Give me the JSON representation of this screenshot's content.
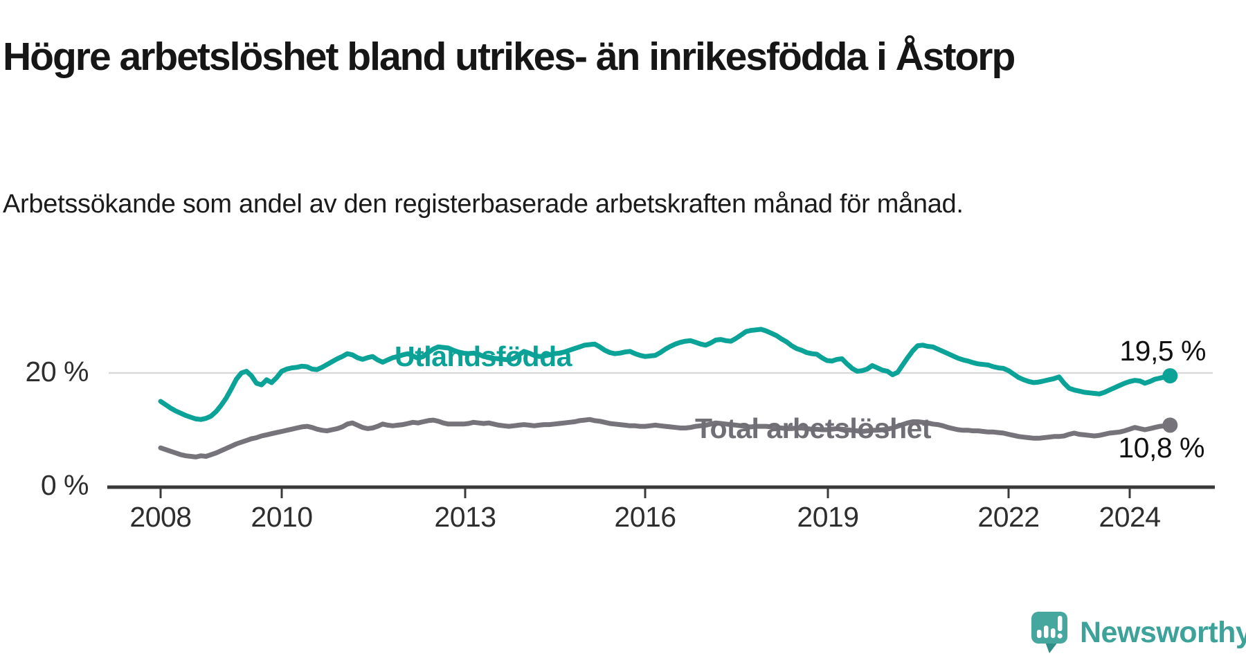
{
  "header": {
    "title": "Högre arbetslöshet bland utrikes- än inrikesfödda i Åstorp",
    "subtitle": "Arbetssökande som andel av den registerbaserade arbetskraften månad för månad."
  },
  "chart_data": {
    "type": "line",
    "title": "Högre arbetslöshet bland utrikes- än inrikesfödda i Åstorp",
    "xlabel": "",
    "ylabel": "Arbetssökande som andel av den registerbaserade arbetskraften",
    "x_start_year": 2008.0,
    "x_step_years": 0.0833333,
    "x_end_label_period": "sep 2024",
    "x_tick_labels": [
      "2008",
      "2010",
      "2013",
      "2016",
      "2019",
      "2022",
      "2024"
    ],
    "y_ticks": [
      {
        "value": 0,
        "label": "0 %"
      },
      {
        "value": 20,
        "label": "20 %"
      }
    ],
    "ylim": [
      0,
      33
    ],
    "grid": "single horizontal gridline at 20 %",
    "legend_position": "inline labels on lines",
    "series": [
      {
        "name": "Utlandsfödda",
        "color": "#0ba398",
        "end_label": "19,5 %",
        "end_value": 19.5,
        "values": [
          15.0,
          14.4,
          13.8,
          13.3,
          12.9,
          12.5,
          12.2,
          11.9,
          11.8,
          12.0,
          12.4,
          13.2,
          14.3,
          15.6,
          17.2,
          18.9,
          20.0,
          20.3,
          19.5,
          18.2,
          17.9,
          18.8,
          18.3,
          19.2,
          20.3,
          20.7,
          20.9,
          21.0,
          21.2,
          21.1,
          20.7,
          20.6,
          21.0,
          21.5,
          22.0,
          22.5,
          22.9,
          23.4,
          23.2,
          22.7,
          22.4,
          22.7,
          22.9,
          22.3,
          21.9,
          22.3,
          22.7,
          22.9,
          23.2,
          23.4,
          23.0,
          22.6,
          22.9,
          23.6,
          24.2,
          24.6,
          24.5,
          24.4,
          24.0,
          23.7,
          23.5,
          23.4,
          23.5,
          23.3,
          22.9,
          22.8,
          22.6,
          22.5,
          22.4,
          22.3,
          22.6,
          23.2,
          23.8,
          23.5,
          23.1,
          22.9,
          23.0,
          23.2,
          23.4,
          23.5,
          23.7,
          24.0,
          24.3,
          24.6,
          24.9,
          25.0,
          25.1,
          24.6,
          24.0,
          23.6,
          23.4,
          23.5,
          23.7,
          23.8,
          23.4,
          23.1,
          22.9,
          23.0,
          23.1,
          23.6,
          24.2,
          24.7,
          25.1,
          25.4,
          25.6,
          25.7,
          25.4,
          25.1,
          24.9,
          25.3,
          25.8,
          25.9,
          25.7,
          25.6,
          26.1,
          26.7,
          27.3,
          27.5,
          27.6,
          27.7,
          27.4,
          27.0,
          26.6,
          26.0,
          25.5,
          24.8,
          24.3,
          24.0,
          23.6,
          23.4,
          23.3,
          22.7,
          22.2,
          22.1,
          22.4,
          22.5,
          21.6,
          20.8,
          20.3,
          20.4,
          20.7,
          21.3,
          20.9,
          20.5,
          20.3,
          19.7,
          20.1,
          21.4,
          22.7,
          23.9,
          24.8,
          24.9,
          24.7,
          24.6,
          24.2,
          23.8,
          23.4,
          23.0,
          22.6,
          22.3,
          22.1,
          21.8,
          21.6,
          21.5,
          21.4,
          21.1,
          20.9,
          20.8,
          20.4,
          19.8,
          19.2,
          18.8,
          18.5,
          18.3,
          18.4,
          18.6,
          18.8,
          19.0,
          19.3,
          18.2,
          17.3,
          17.0,
          16.8,
          16.6,
          16.5,
          16.4,
          16.3,
          16.6,
          17.0,
          17.4,
          17.8,
          18.2,
          18.5,
          18.7,
          18.6,
          18.2,
          18.5,
          18.9,
          19.1,
          19.3,
          19.5
        ]
      },
      {
        "name": "Total arbetslöshet",
        "color": "#76747a",
        "end_label": "10,8 %",
        "end_value": 10.8,
        "values": [
          6.8,
          6.5,
          6.2,
          5.9,
          5.6,
          5.4,
          5.3,
          5.2,
          5.4,
          5.3,
          5.6,
          5.9,
          6.3,
          6.7,
          7.1,
          7.5,
          7.8,
          8.1,
          8.4,
          8.6,
          8.9,
          9.1,
          9.3,
          9.5,
          9.7,
          9.9,
          10.1,
          10.3,
          10.5,
          10.6,
          10.4,
          10.1,
          9.9,
          9.8,
          10.0,
          10.2,
          10.5,
          11.0,
          11.2,
          10.8,
          10.4,
          10.2,
          10.3,
          10.6,
          11.0,
          10.8,
          10.7,
          10.8,
          10.9,
          11.1,
          11.3,
          11.2,
          11.4,
          11.6,
          11.7,
          11.5,
          11.2,
          11.0,
          11.0,
          11.0,
          11.0,
          11.1,
          11.3,
          11.2,
          11.1,
          11.2,
          11.0,
          10.8,
          10.7,
          10.6,
          10.7,
          10.8,
          10.9,
          10.8,
          10.7,
          10.8,
          10.9,
          10.9,
          11.0,
          11.1,
          11.2,
          11.3,
          11.4,
          11.6,
          11.7,
          11.8,
          11.6,
          11.5,
          11.3,
          11.1,
          11.0,
          10.9,
          10.8,
          10.7,
          10.7,
          10.6,
          10.6,
          10.7,
          10.8,
          10.7,
          10.6,
          10.5,
          10.4,
          10.3,
          10.3,
          10.4,
          10.6,
          10.7,
          10.8,
          11.0,
          11.2,
          11.1,
          11.0,
          10.9,
          10.8,
          10.7,
          10.5,
          10.5,
          10.6,
          10.6,
          10.6,
          10.5,
          10.4,
          10.3,
          10.2,
          10.2,
          10.3,
          10.3,
          10.2,
          10.1,
          10.1,
          10.0,
          10.0,
          10.1,
          10.2,
          10.1,
          10.0,
          9.9,
          9.8,
          9.7,
          9.8,
          9.9,
          9.9,
          10.0,
          10.1,
          10.3,
          10.6,
          10.9,
          11.2,
          11.4,
          11.4,
          11.3,
          11.2,
          11.0,
          10.9,
          10.7,
          10.4,
          10.2,
          10.0,
          9.9,
          9.9,
          9.8,
          9.8,
          9.7,
          9.6,
          9.6,
          9.5,
          9.4,
          9.2,
          9.0,
          8.8,
          8.7,
          8.6,
          8.5,
          8.5,
          8.6,
          8.7,
          8.8,
          8.8,
          8.9,
          9.2,
          9.4,
          9.2,
          9.1,
          9.0,
          8.9,
          9.0,
          9.2,
          9.4,
          9.5,
          9.6,
          9.8,
          10.1,
          10.4,
          10.2,
          10.0,
          10.2,
          10.4,
          10.6,
          10.7,
          10.8
        ]
      }
    ]
  },
  "branding": {
    "logo_text": "Newsworthy",
    "logo_color": "#46a79f",
    "logo_text_color": "#3da29a"
  }
}
